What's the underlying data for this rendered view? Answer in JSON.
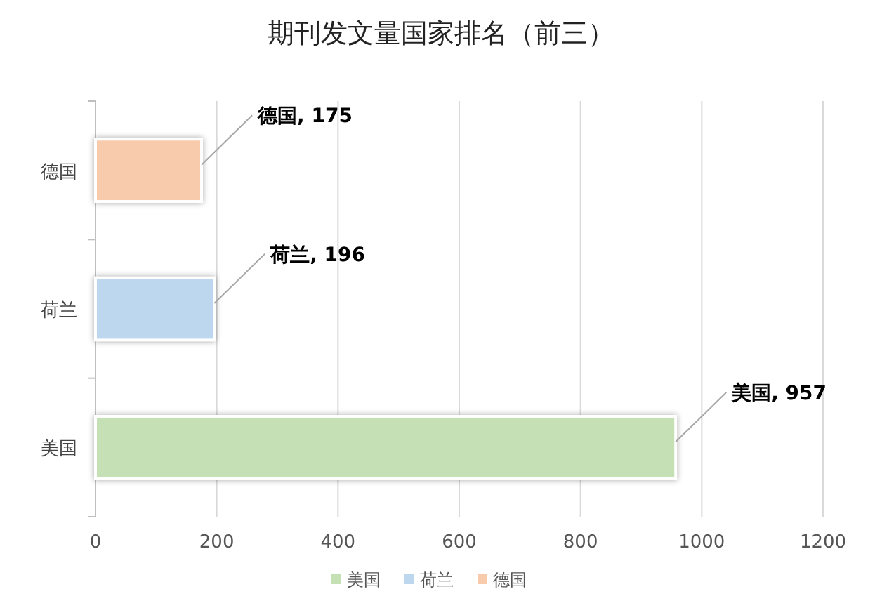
{
  "chart_data": {
    "type": "bar",
    "orientation": "horizontal",
    "title": "期刊发文量国家排名（前三）",
    "categories": [
      "德国",
      "荷兰",
      "美国"
    ],
    "series": [
      {
        "name": "美国",
        "color": "#c5e0b4",
        "values": [
          null,
          null,
          957
        ],
        "value_labels": [
          null,
          null,
          "美国, 957"
        ]
      },
      {
        "name": "荷兰",
        "color": "#bdd7ee",
        "values": [
          null,
          196,
          null
        ],
        "value_labels": [
          null,
          "荷兰, 196",
          null
        ]
      },
      {
        "name": "德国",
        "color": "#f8cbad",
        "values": [
          175,
          null,
          null
        ],
        "value_labels": [
          "德国, 175",
          null,
          null
        ]
      }
    ],
    "xlim": [
      0,
      1200
    ],
    "xticks": [
      0,
      200,
      400,
      600,
      800,
      1000,
      1200
    ],
    "grid": "x",
    "legend": "bottom"
  }
}
